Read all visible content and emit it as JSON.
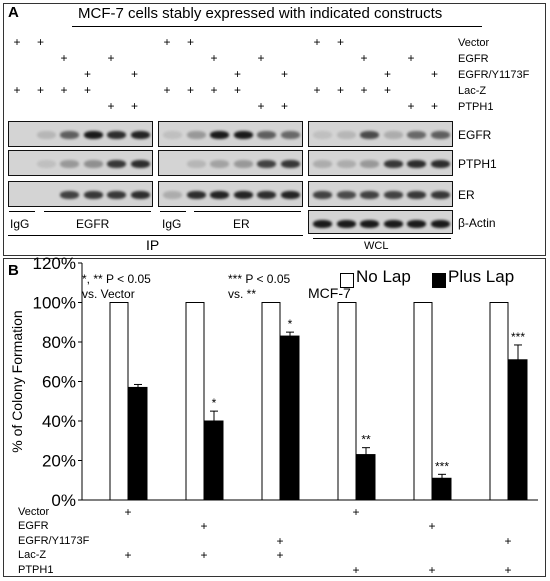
{
  "panel_a": {
    "label": "A",
    "title": "MCF-7 cells stably expressed with indicated constructs",
    "row_labels": [
      "Vector",
      "EGFR",
      "EGFR/Y1173F",
      "Lac-Z",
      "PTPH1"
    ],
    "lanes": [
      [
        "+",
        "",
        "",
        "+",
        ""
      ],
      [
        "+",
        "",
        "",
        "+",
        ""
      ],
      [
        "",
        "+",
        "",
        "+",
        ""
      ],
      [
        "",
        "",
        "+",
        "+",
        ""
      ],
      [
        "",
        "+",
        "",
        "",
        "+"
      ],
      [
        "",
        "",
        "+",
        "",
        "+"
      ]
    ],
    "blot_labels": [
      "EGFR",
      "PTPH1",
      "ER",
      "β-Actin"
    ],
    "section_labels": {
      "igg1": "IgG",
      "egfr": "EGFR",
      "igg2": "IgG",
      "er": "ER",
      "ip": "IP",
      "wcl": "WCL"
    }
  },
  "panel_b": {
    "label": "B",
    "cell_label": "MCF-7",
    "stats1": {
      "line1": "*, ** P < 0.05",
      "line2": "vs. Vector"
    },
    "stats2": {
      "line1": "*** P < 0.05",
      "line2": "vs. **"
    },
    "legend": {
      "no_lap": "No Lap",
      "plus_lap": "Plus Lap"
    },
    "bottom_rows": [
      "Vector",
      "EGFR",
      "EGFR/Y1173F",
      "Lac-Z",
      "PTPH1"
    ],
    "bottom_marks": [
      [
        "+",
        "",
        "",
        "+",
        ""
      ],
      [
        "",
        "+",
        "",
        "+",
        ""
      ],
      [
        "",
        "",
        "+",
        "+",
        ""
      ],
      [
        "+",
        "",
        "",
        "",
        "+"
      ],
      [
        "",
        "+",
        "",
        "",
        "+"
      ],
      [
        "",
        "",
        "+",
        "",
        "+"
      ]
    ]
  },
  "chart_data": {
    "type": "bar",
    "ylabel": "% of Colony Formation",
    "ylim": [
      0,
      120
    ],
    "yticks": [
      "0%",
      "20%",
      "40%",
      "60%",
      "80%",
      "100%",
      "120%"
    ],
    "series": [
      {
        "name": "No Lap",
        "color": "#ffffff",
        "values": [
          100,
          100,
          100,
          100,
          100,
          100
        ]
      },
      {
        "name": "Plus Lap",
        "color": "#000000",
        "values": [
          57,
          40,
          83,
          23,
          11,
          71
        ],
        "errors": [
          1.5,
          5,
          2,
          3.5,
          2,
          7.5
        ],
        "annotations": [
          "",
          "*",
          "*",
          "**",
          "***",
          "***"
        ]
      }
    ]
  }
}
